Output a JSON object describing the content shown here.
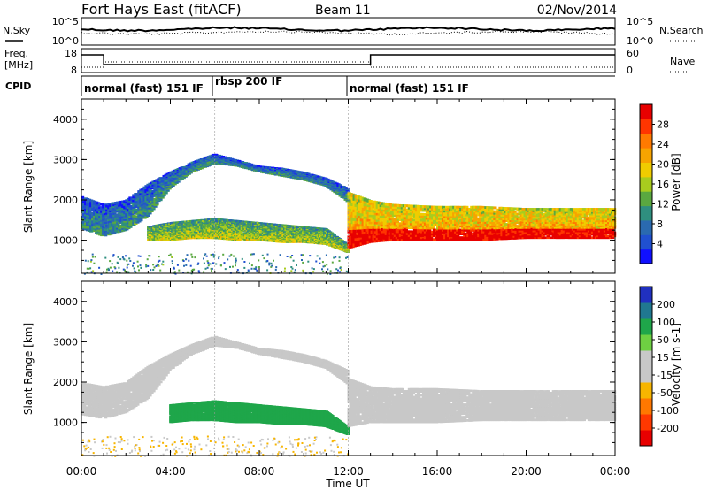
{
  "header": {
    "title": "Fort Hays East (fitACF)",
    "beam": "Beam 11",
    "date": "02/Nov/2014"
  },
  "top_panels": {
    "nsky_label": "N.Sky",
    "nsearch_label": "N.Search",
    "noise_ticks_left": [
      "10^5",
      "10^0"
    ],
    "noise_ticks_right": [
      "10^5",
      "10^0"
    ],
    "freq_label_1": "Freq.",
    "freq_label_2": "[MHz]",
    "freq_ticks": [
      "18",
      "8"
    ],
    "nave_label": "Nave",
    "nave_ticks": [
      "60",
      "0"
    ],
    "cpid_label": "CPID",
    "cpid_segments": [
      {
        "label": "normal (fast) 151 IF",
        "start_hour": 0,
        "end_hour": 6
      },
      {
        "label": "rbsp 200 IF",
        "start_hour": 6,
        "end_hour": 12
      },
      {
        "label": "normal (fast) 151 IF",
        "start_hour": 12,
        "end_hour": 24
      }
    ]
  },
  "colors": {
    "power": [
      "#1010ff",
      "#2050d0",
      "#2a6ab0",
      "#2f8f7f",
      "#5aa840",
      "#a8cc1e",
      "#f0cc00",
      "#f7a400",
      "#ff7a00",
      "#ff3500",
      "#e80000"
    ],
    "velocity": [
      "#e80000",
      "#ff3800",
      "#ff7800",
      "#f7b500",
      "#c8c8c8",
      "#c8c8c8",
      "#6ed042",
      "#1fa64a",
      "#207890",
      "#2030c0"
    ]
  },
  "chart_data": [
    {
      "type": "heatmap",
      "name": "Power",
      "ylabel": "Slant Range [km]",
      "ylim": [
        180,
        4500
      ],
      "xlim": [
        0,
        24
      ],
      "yticks": [
        1000,
        2000,
        3000,
        4000
      ],
      "xticks": [
        "00:00",
        "04:00",
        "08:00",
        "12:00",
        "16:00",
        "20:00",
        "00:00"
      ],
      "colorbar": {
        "label": "Power [dB]",
        "ticks": [
          "4",
          "8",
          "12",
          "16",
          "20",
          "24",
          "28"
        ],
        "range": [
          0,
          30
        ]
      },
      "bands": [
        {
          "x": [
            0,
            1,
            2,
            3,
            4,
            5,
            6,
            7,
            8,
            9,
            10,
            11,
            12
          ],
          "lower": [
            1300,
            1100,
            1250,
            1600,
            2300,
            2700,
            2900,
            2850,
            2700,
            2600,
            2500,
            2350,
            1950
          ],
          "upper": [
            2100,
            1900,
            2000,
            2400,
            2700,
            2950,
            3150,
            3000,
            2850,
            2800,
            2700,
            2550,
            2300
          ],
          "level": 10
        },
        {
          "x": [
            3,
            4,
            5,
            6,
            7,
            8,
            9,
            10,
            11,
            12
          ],
          "lower": [
            1000,
            1000,
            1050,
            1050,
            1000,
            1000,
            950,
            950,
            900,
            700
          ],
          "upper": [
            1350,
            1450,
            1500,
            1550,
            1500,
            1450,
            1400,
            1350,
            1300,
            900
          ],
          "level": 16
        },
        {
          "x": [
            12,
            13,
            14,
            16,
            18,
            20,
            22,
            24
          ],
          "lower": [
            800,
            950,
            1000,
            1000,
            1000,
            1050,
            1050,
            1050
          ],
          "upper": [
            2200,
            2000,
            1900,
            1850,
            1850,
            1800,
            1800,
            1800
          ],
          "level": 22
        }
      ]
    },
    {
      "type": "heatmap",
      "name": "Velocity",
      "ylabel": "Slant Range [km]",
      "ylim": [
        180,
        4500
      ],
      "xlim": [
        0,
        24
      ],
      "yticks": [
        1000,
        2000,
        3000,
        4000
      ],
      "xticks": [
        "00:00",
        "04:00",
        "08:00",
        "12:00",
        "16:00",
        "20:00",
        "00:00"
      ],
      "xlabel": "Time UT",
      "colorbar": {
        "label": "Velocity [m s-1]",
        "ticks": [
          "-200",
          "-100",
          "-50",
          "-15",
          "15",
          "50",
          "100",
          "200"
        ],
        "range": [
          -250,
          250
        ]
      },
      "bands": [
        {
          "x": [
            0,
            1,
            2,
            3,
            4,
            5,
            6,
            7,
            8,
            9,
            10,
            11,
            12
          ],
          "lower": [
            1200,
            1100,
            1250,
            1600,
            2300,
            2700,
            2900,
            2850,
            2700,
            2600,
            2500,
            2350,
            1950
          ],
          "upper": [
            2000,
            1900,
            2000,
            2400,
            2700,
            2950,
            3150,
            3000,
            2850,
            2800,
            2700,
            2550,
            2300
          ],
          "level": 0
        },
        {
          "x": [
            4,
            5,
            6,
            7,
            8,
            9,
            10,
            11,
            12
          ],
          "lower": [
            1000,
            1050,
            1050,
            1000,
            1000,
            950,
            950,
            900,
            700
          ],
          "upper": [
            1450,
            1500,
            1550,
            1500,
            1450,
            1400,
            1350,
            1300,
            900
          ],
          "level": 70
        },
        {
          "x": [
            12,
            13,
            14,
            16,
            18,
            20,
            22,
            24
          ],
          "lower": [
            900,
            1000,
            1000,
            1000,
            1050,
            1050,
            1050,
            1050
          ],
          "upper": [
            2100,
            1900,
            1850,
            1850,
            1800,
            1800,
            1800,
            1800
          ],
          "level": 0
        }
      ]
    }
  ]
}
